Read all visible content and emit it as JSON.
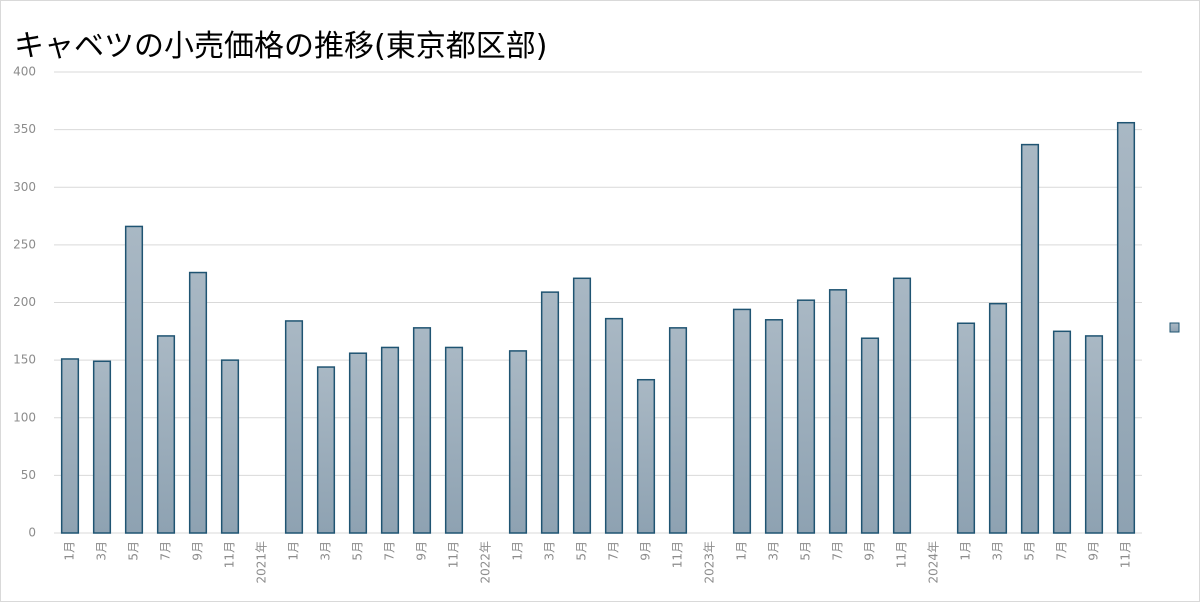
{
  "chart_data": {
    "type": "bar",
    "title": "キャベツの小売価格の推移(東京都区部)",
    "categories": [
      "1月",
      "3月",
      "5月",
      "7月",
      "9月",
      "11月",
      "2021年",
      "1月",
      "3月",
      "5月",
      "7月",
      "9月",
      "11月",
      "2022年",
      "1月",
      "3月",
      "5月",
      "7月",
      "9月",
      "11月",
      "2023年",
      "1月",
      "3月",
      "5月",
      "7月",
      "9月",
      "11月",
      "2024年",
      "1月",
      "3月",
      "5月",
      "7月",
      "9月",
      "11月"
    ],
    "values": [
      151,
      149,
      266,
      171,
      226,
      150,
      null,
      184,
      144,
      156,
      161,
      178,
      161,
      null,
      158,
      209,
      221,
      186,
      133,
      178,
      null,
      194,
      185,
      202,
      211,
      169,
      221,
      null,
      182,
      199,
      337,
      175,
      171,
      356
    ],
    "color": "#8ea2b2",
    "edgecolor": "#1f5472",
    "ylim": [
      0,
      400
    ],
    "yticks": [
      0,
      50,
      100,
      150,
      200,
      250,
      300,
      350,
      400
    ],
    "grid": true,
    "legend": "right"
  }
}
